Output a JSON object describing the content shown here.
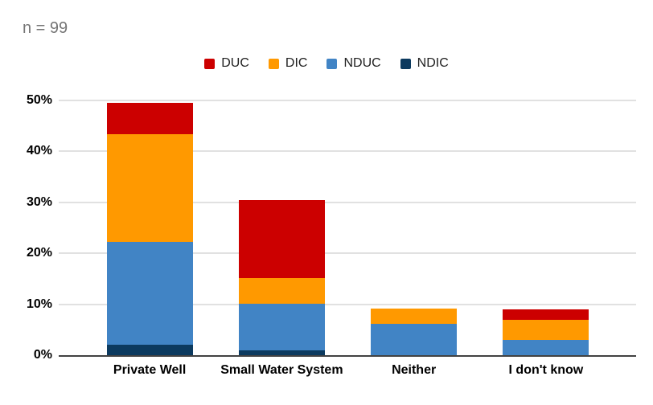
{
  "annotation": "n = 99",
  "chart_data": {
    "type": "bar",
    "stacked": true,
    "title": "n = 99",
    "categories": [
      "Private Well",
      "Small Water System",
      "Neither",
      "I don't know"
    ],
    "series": [
      {
        "name": "NDIC",
        "color": "#0c3a5f",
        "values": [
          2.0,
          1.0,
          0,
          0
        ]
      },
      {
        "name": "NDUC",
        "color": "#4184c5",
        "values": [
          20.2,
          9.1,
          6.1,
          3.0
        ]
      },
      {
        "name": "DIC",
        "color": "#ff9900",
        "values": [
          21.2,
          5.1,
          3.0,
          4.0
        ]
      },
      {
        "name": "DUC",
        "color": "#cc0000",
        "values": [
          6.1,
          15.2,
          0,
          2.0
        ]
      }
    ],
    "stack_totals_pct": [
      49.5,
      30.3,
      9.1,
      9.1
    ],
    "legend_order": [
      "DUC",
      "DIC",
      "NDUC",
      "NDIC"
    ],
    "legend_position": "top",
    "xlabel": "",
    "ylabel": "",
    "y_ticks": [
      {
        "value": 0,
        "label": "0%"
      },
      {
        "value": 10,
        "label": "10%"
      },
      {
        "value": 20,
        "label": "20%"
      },
      {
        "value": 30,
        "label": "30%"
      },
      {
        "value": 40,
        "label": "40%"
      },
      {
        "value": 50,
        "label": "50%"
      }
    ],
    "ylim": [
      0,
      50
    ],
    "grid": true
  },
  "colors": {
    "annotation_text": "#757575",
    "axis_label_text": "#000000",
    "legend_text": "#212121",
    "gridline": "#e1e1e1",
    "baseline": "#424242",
    "background": "#ffffff"
  }
}
